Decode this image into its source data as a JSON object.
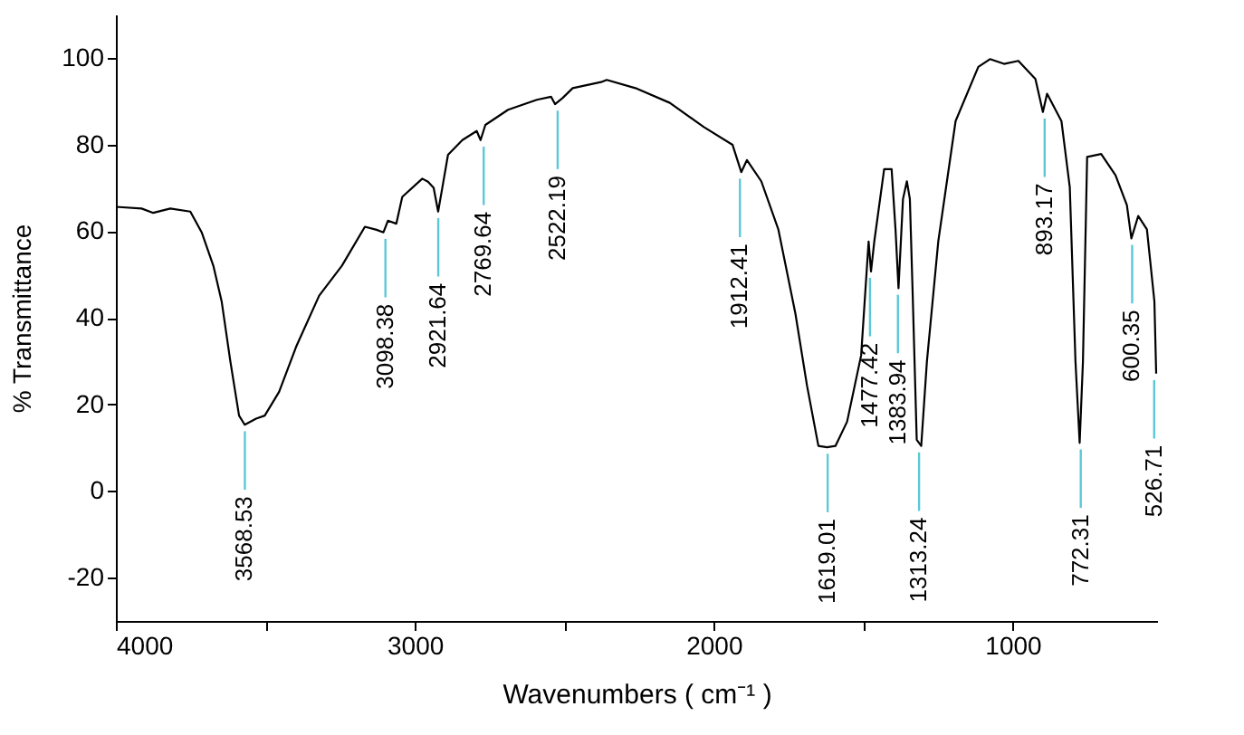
{
  "chart_data": {
    "type": "line",
    "xlabel": "Wavenumbers ( cm⁻¹ )",
    "ylabel": "% Transmittance",
    "xlim": [
      4000,
      517
    ],
    "ylim": [
      -30,
      110
    ],
    "xticks": [
      4000,
      {
        "value": 3500,
        "label": null
      },
      3000,
      {
        "value": 2500,
        "label": null
      },
      2000,
      {
        "value": 1500,
        "label": null
      },
      1000
    ],
    "yticks": [
      -20,
      0,
      20,
      40,
      60,
      80,
      100
    ],
    "grid": false,
    "marker": "none",
    "line_style": "solid",
    "series": [
      {
        "color": "#000000",
        "x": [
          4000,
          3914,
          3875,
          3818,
          3751,
          3713,
          3674,
          3646,
          3617,
          3588,
          3569,
          3531,
          3502,
          3454,
          3397,
          3320,
          3244,
          3167,
          3128,
          3105,
          3090,
          3062,
          3042,
          2975,
          2956,
          2937,
          2922,
          2908,
          2889,
          2841,
          2793,
          2780,
          2764,
          2688,
          2592,
          2544,
          2531,
          2506,
          2472,
          2377,
          2358,
          2262,
          2147,
          2033,
          1937,
          1908,
          1889,
          1841,
          1784,
          1727,
          1688,
          1650,
          1621,
          1593,
          1554,
          1507,
          1482,
          1474,
          1463,
          1430,
          1405,
          1392,
          1382,
          1367,
          1354,
          1344,
          1335,
          1321,
          1306,
          1287,
          1249,
          1191,
          1115,
          1076,
          1029,
          981,
          924,
          899,
          885,
          837,
          809,
          790,
          776,
          765,
          751,
          704,
          656,
          618,
          603,
          580,
          551,
          526,
          520
        ],
        "values": [
          65.6,
          65.2,
          64.2,
          65.2,
          64.5,
          59.7,
          52,
          43.7,
          29.9,
          17.4,
          15.3,
          16.7,
          17.4,
          22.9,
          33.3,
          45.1,
          52,
          61,
          60.3,
          59.7,
          62.4,
          61.7,
          67.9,
          72.1,
          71.4,
          70,
          64.5,
          70,
          77.6,
          81,
          83.1,
          81,
          84.5,
          88,
          90.3,
          91,
          89.3,
          90.7,
          93,
          94.4,
          94.9,
          93,
          89.6,
          84,
          79.9,
          73.6,
          76.4,
          71.5,
          60.4,
          41,
          24.3,
          10.4,
          10.1,
          10.4,
          16,
          31.3,
          57.6,
          50.7,
          57.6,
          74.3,
          74.3,
          60.4,
          46.8,
          67.4,
          71.5,
          67.4,
          46.5,
          11.8,
          10.4,
          29.9,
          57.6,
          85.4,
          97.9,
          99.7,
          98.6,
          99.3,
          95.1,
          87.5,
          91.7,
          85.4,
          70.1,
          29.9,
          11.1,
          29.9,
          77.1,
          77.8,
          72.9,
          66,
          58.3,
          63.5,
          60.4,
          43.8,
          27.1
        ]
      }
    ],
    "annotations": [
      {
        "text": "3568.53",
        "x": 3568.53,
        "y": 15.3
      },
      {
        "text": "3098.38",
        "x": 3098.38,
        "y": 59.7
      },
      {
        "text": "2921.64",
        "x": 2921.64,
        "y": 64.5
      },
      {
        "text": "2769.64",
        "x": 2769.64,
        "y": 81
      },
      {
        "text": "2522.19",
        "x": 2522.19,
        "y": 89.3
      },
      {
        "text": "1912.41",
        "x": 1912.41,
        "y": 73.6
      },
      {
        "text": "1619.01",
        "x": 1619.01,
        "y": 10.1
      },
      {
        "text": "1477.42",
        "x": 1477.42,
        "y": 50.7
      },
      {
        "text": "1383.94",
        "x": 1383.94,
        "y": 46.8
      },
      {
        "text": "1313.24",
        "x": 1313.24,
        "y": 10.4
      },
      {
        "text": "893.17",
        "x": 893.17,
        "y": 87.5
      },
      {
        "text": "772.31",
        "x": 772.31,
        "y": 11.1
      },
      {
        "text": "600.35",
        "x": 600.35,
        "y": 58.3
      },
      {
        "text": "526.71",
        "x": 526.71,
        "y": 27.1
      }
    ]
  }
}
